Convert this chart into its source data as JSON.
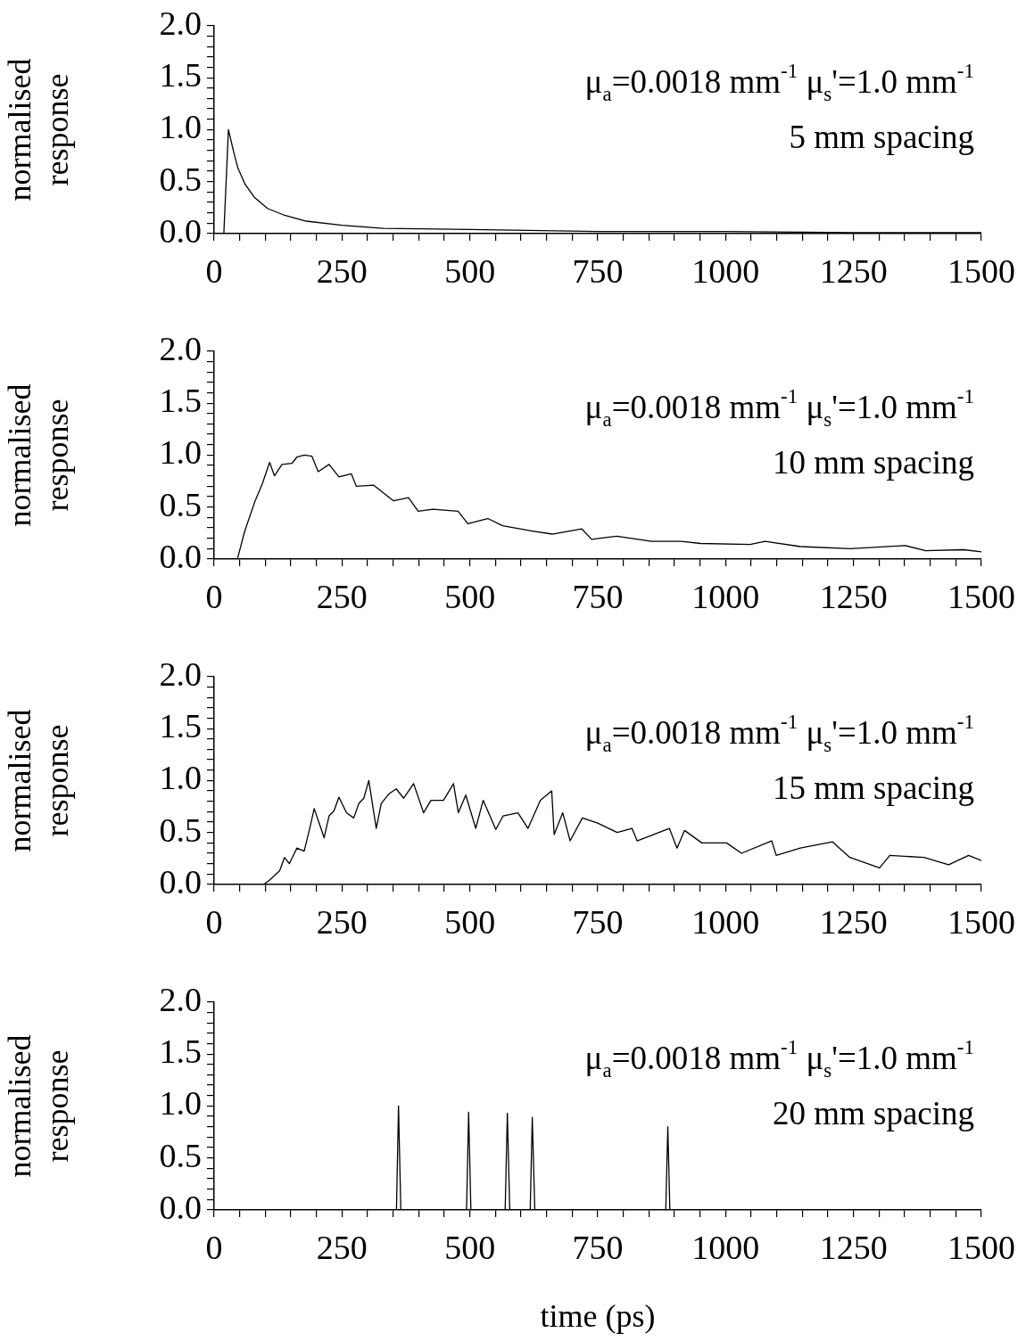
{
  "chart_data": [
    {
      "type": "line",
      "color": "#000000",
      "ylabel": "normalised response",
      "annotations": [
        "μ$_{a}$=0.0018 mm$^{-1}$ μ$_{s}$'=1.0 mm$^{-1}$",
        "5 mm spacing"
      ],
      "x": [
        0,
        19,
        28,
        38,
        46.5,
        60,
        78.5,
        105,
        136,
        180,
        250,
        331,
        500,
        750,
        1000,
        1250,
        1500
      ],
      "values": [
        0,
        0,
        1.0,
        0.79,
        0.63,
        0.48,
        0.35,
        0.24,
        0.18,
        0.12,
        0.08,
        0.05,
        0.04,
        0.02,
        0.02,
        0.01,
        0.01
      ],
      "xlim": [
        0,
        1500
      ],
      "ylim": [
        0,
        2
      ],
      "xticks": [
        0,
        {
          "value": 50,
          "label": null
        },
        {
          "value": 100,
          "label": null
        },
        {
          "value": 150,
          "label": null
        },
        {
          "value": 200,
          "label": null
        },
        250,
        {
          "value": 300,
          "label": null
        },
        {
          "value": 350,
          "label": null
        },
        {
          "value": 400,
          "label": null
        },
        {
          "value": 450,
          "label": null
        },
        500,
        {
          "value": 550,
          "label": null
        },
        {
          "value": 600,
          "label": null
        },
        {
          "value": 650,
          "label": null
        },
        {
          "value": 700,
          "label": null
        },
        750,
        {
          "value": 800,
          "label": null
        },
        {
          "value": 850,
          "label": null
        },
        {
          "value": 900,
          "label": null
        },
        {
          "value": 950,
          "label": null
        },
        1000,
        {
          "value": 1050,
          "label": null
        },
        {
          "value": 1100,
          "label": null
        },
        {
          "value": 1150,
          "label": null
        },
        {
          "value": 1200,
          "label": null
        },
        1250,
        {
          "value": 1300,
          "label": null
        },
        {
          "value": 1350,
          "label": null
        },
        {
          "value": 1400,
          "label": null
        },
        {
          "value": 1450,
          "label": null
        },
        1500
      ],
      "yticks": [
        {
          "value": 0,
          "label": "0.0"
        },
        {
          "value": 0.1,
          "label": null
        },
        {
          "value": 0.2,
          "label": null
        },
        {
          "value": 0.3,
          "label": null
        },
        {
          "value": 0.4,
          "label": null
        },
        {
          "value": 0.5,
          "label": "0.5"
        },
        {
          "value": 0.6,
          "label": null
        },
        {
          "value": 0.7,
          "label": null
        },
        {
          "value": 0.8,
          "label": null
        },
        {
          "value": 0.9,
          "label": null
        },
        {
          "value": 1,
          "label": "1.0"
        },
        {
          "value": 1.1,
          "label": null
        },
        {
          "value": 1.2,
          "label": null
        },
        {
          "value": 1.3,
          "label": null
        },
        {
          "value": 1.4,
          "label": null
        },
        {
          "value": 1.5,
          "label": "1.5"
        },
        {
          "value": 1.6,
          "label": null
        },
        {
          "value": 1.7,
          "label": null
        },
        {
          "value": 1.8,
          "label": null
        },
        {
          "value": 1.9,
          "label": null
        },
        {
          "value": 2,
          "label": "2.0"
        }
      ]
    },
    {
      "type": "line",
      "color": "#000000",
      "ylabel": "normalised response",
      "annotations": [
        "μ$_{a}$=0.0018 mm$^{-1}$ μ$_{s}$'=1.0 mm$^{-1}$",
        "10 mm spacing"
      ],
      "x": [
        0,
        45.5,
        60,
        79.5,
        94,
        108.5,
        118,
        132.7,
        152,
        161.8,
        176.4,
        191,
        203.5,
        224.8,
        244,
        268.4,
        278,
        312,
        350.8,
        380,
        399,
        428,
        477,
        496,
        535,
        564,
        622,
        661,
        719,
        738,
        787,
        855,
        913,
        951,
        1048,
        1077,
        1146,
        1244,
        1351,
        1391,
        1465,
        1500
      ],
      "values": [
        0,
        0,
        0.27,
        0.55,
        0.72,
        0.93,
        0.8,
        0.91,
        0.92,
        0.98,
        1.0,
        0.99,
        0.84,
        0.91,
        0.79,
        0.82,
        0.7,
        0.71,
        0.56,
        0.59,
        0.46,
        0.48,
        0.46,
        0.34,
        0.39,
        0.32,
        0.27,
        0.24,
        0.29,
        0.19,
        0.22,
        0.17,
        0.17,
        0.15,
        0.14,
        0.17,
        0.12,
        0.1,
        0.13,
        0.08,
        0.09,
        0.07
      ],
      "xlim": [
        0,
        1500
      ],
      "ylim": [
        0,
        2
      ],
      "xticks": [
        0,
        {
          "value": 50,
          "label": null
        },
        {
          "value": 100,
          "label": null
        },
        {
          "value": 150,
          "label": null
        },
        {
          "value": 200,
          "label": null
        },
        250,
        {
          "value": 300,
          "label": null
        },
        {
          "value": 350,
          "label": null
        },
        {
          "value": 400,
          "label": null
        },
        {
          "value": 450,
          "label": null
        },
        500,
        {
          "value": 550,
          "label": null
        },
        {
          "value": 600,
          "label": null
        },
        {
          "value": 650,
          "label": null
        },
        {
          "value": 700,
          "label": null
        },
        750,
        {
          "value": 800,
          "label": null
        },
        {
          "value": 850,
          "label": null
        },
        {
          "value": 900,
          "label": null
        },
        {
          "value": 950,
          "label": null
        },
        1000,
        {
          "value": 1050,
          "label": null
        },
        {
          "value": 1100,
          "label": null
        },
        {
          "value": 1150,
          "label": null
        },
        {
          "value": 1200,
          "label": null
        },
        1250,
        {
          "value": 1300,
          "label": null
        },
        {
          "value": 1350,
          "label": null
        },
        {
          "value": 1400,
          "label": null
        },
        {
          "value": 1450,
          "label": null
        },
        1500
      ],
      "yticks": [
        {
          "value": 0,
          "label": "0.0"
        },
        {
          "value": 0.1,
          "label": null
        },
        {
          "value": 0.2,
          "label": null
        },
        {
          "value": 0.3,
          "label": null
        },
        {
          "value": 0.4,
          "label": null
        },
        {
          "value": 0.5,
          "label": "0.5"
        },
        {
          "value": 0.6,
          "label": null
        },
        {
          "value": 0.7,
          "label": null
        },
        {
          "value": 0.8,
          "label": null
        },
        {
          "value": 0.9,
          "label": null
        },
        {
          "value": 1,
          "label": "1.0"
        },
        {
          "value": 1.1,
          "label": null
        },
        {
          "value": 1.2,
          "label": null
        },
        {
          "value": 1.3,
          "label": null
        },
        {
          "value": 1.4,
          "label": null
        },
        {
          "value": 1.5,
          "label": "1.5"
        },
        {
          "value": 1.6,
          "label": null
        },
        {
          "value": 1.7,
          "label": null
        },
        {
          "value": 1.8,
          "label": null
        },
        {
          "value": 1.9,
          "label": null
        },
        {
          "value": 2,
          "label": "2.0"
        }
      ]
    },
    {
      "type": "line",
      "color": "#000000",
      "ylabel": "normalised response",
      "annotations": [
        "μ$_{a}$=0.0018 mm$^{-1}$ μ$_{s}$'=1.0 mm$^{-1}$",
        "15 mm spacing"
      ],
      "x": [
        0,
        96.9,
        108,
        128,
        137.6,
        147,
        161.8,
        176,
        186,
        195.7,
        205.4,
        215,
        224.8,
        234.5,
        244,
        258.7,
        273,
        283,
        292.7,
        302.4,
        317,
        326.8,
        341.4,
        356,
        370.7,
        390,
        409.5,
        424,
        448.5,
        468,
        477.5,
        492,
        511.5,
        526,
        550.7,
        565,
        594,
        613.6,
        638,
        660,
        664.8,
        681.6,
        696,
        720,
        749.7,
        788,
        817,
        827,
        890,
        905,
        919.7,
        953.6,
        1002,
        1031,
        1090,
        1099,
        1146,
        1209,
        1243,
        1301,
        1321,
        1388,
        1436,
        1475,
        1500
      ],
      "values": [
        0,
        0,
        0.04,
        0.13,
        0.26,
        0.2,
        0.35,
        0.32,
        0.52,
        0.73,
        0.59,
        0.45,
        0.66,
        0.71,
        0.84,
        0.69,
        0.64,
        0.78,
        0.83,
        1.0,
        0.54,
        0.78,
        0.87,
        0.92,
        0.83,
        0.97,
        0.69,
        0.81,
        0.81,
        0.97,
        0.69,
        0.86,
        0.54,
        0.81,
        0.53,
        0.66,
        0.69,
        0.54,
        0.81,
        0.9,
        0.48,
        0.69,
        0.42,
        0.64,
        0.59,
        0.5,
        0.54,
        0.42,
        0.54,
        0.35,
        0.52,
        0.4,
        0.4,
        0.3,
        0.42,
        0.28,
        0.35,
        0.41,
        0.26,
        0.16,
        0.28,
        0.26,
        0.19,
        0.28,
        0.23
      ],
      "xlim": [
        0,
        1500
      ],
      "ylim": [
        0,
        2
      ],
      "xticks": [
        0,
        {
          "value": 50,
          "label": null
        },
        {
          "value": 100,
          "label": null
        },
        {
          "value": 150,
          "label": null
        },
        {
          "value": 200,
          "label": null
        },
        250,
        {
          "value": 300,
          "label": null
        },
        {
          "value": 350,
          "label": null
        },
        {
          "value": 400,
          "label": null
        },
        {
          "value": 450,
          "label": null
        },
        500,
        {
          "value": 550,
          "label": null
        },
        {
          "value": 600,
          "label": null
        },
        {
          "value": 650,
          "label": null
        },
        {
          "value": 700,
          "label": null
        },
        750,
        {
          "value": 800,
          "label": null
        },
        {
          "value": 850,
          "label": null
        },
        {
          "value": 900,
          "label": null
        },
        {
          "value": 950,
          "label": null
        },
        1000,
        {
          "value": 1050,
          "label": null
        },
        {
          "value": 1100,
          "label": null
        },
        {
          "value": 1150,
          "label": null
        },
        {
          "value": 1200,
          "label": null
        },
        1250,
        {
          "value": 1300,
          "label": null
        },
        {
          "value": 1350,
          "label": null
        },
        {
          "value": 1400,
          "label": null
        },
        {
          "value": 1450,
          "label": null
        },
        1500
      ],
      "yticks": [
        {
          "value": 0,
          "label": "0.0"
        },
        {
          "value": 0.1,
          "label": null
        },
        {
          "value": 0.2,
          "label": null
        },
        {
          "value": 0.3,
          "label": null
        },
        {
          "value": 0.4,
          "label": null
        },
        {
          "value": 0.5,
          "label": "0.5"
        },
        {
          "value": 0.6,
          "label": null
        },
        {
          "value": 0.7,
          "label": null
        },
        {
          "value": 0.8,
          "label": null
        },
        {
          "value": 0.9,
          "label": null
        },
        {
          "value": 1,
          "label": "1.0"
        },
        {
          "value": 1.1,
          "label": null
        },
        {
          "value": 1.2,
          "label": null
        },
        {
          "value": 1.3,
          "label": null
        },
        {
          "value": 1.4,
          "label": null
        },
        {
          "value": 1.5,
          "label": "1.5"
        },
        {
          "value": 1.6,
          "label": null
        },
        {
          "value": 1.7,
          "label": null
        },
        {
          "value": 1.8,
          "label": null
        },
        {
          "value": 1.9,
          "label": null
        },
        {
          "value": 2,
          "label": "2.0"
        }
      ]
    },
    {
      "type": "line",
      "color": "#000000",
      "ylabel": "normalised response",
      "xlabel": "time (ps)",
      "annotations": [
        "μ$_{a}$=0.0018 mm$^{-1}$ μ$_{s}$'=1.0 mm$^{-1}$",
        "20 mm spacing"
      ],
      "x": [
        0,
        356.5,
        360.5,
        365,
        493.5,
        497.6,
        502,
        569,
        573.3,
        578,
        618,
        622,
        627,
        883,
        887,
        891,
        1500
      ],
      "values": [
        0,
        0,
        1.0,
        0,
        0,
        0.94,
        0,
        0,
        0.93,
        0,
        0,
        0.89,
        0,
        0,
        0.8,
        0,
        0
      ],
      "xlim": [
        0,
        1500
      ],
      "ylim": [
        0,
        2
      ],
      "xticks": [
        0,
        {
          "value": 50,
          "label": null
        },
        {
          "value": 100,
          "label": null
        },
        {
          "value": 150,
          "label": null
        },
        {
          "value": 200,
          "label": null
        },
        250,
        {
          "value": 300,
          "label": null
        },
        {
          "value": 350,
          "label": null
        },
        {
          "value": 400,
          "label": null
        },
        {
          "value": 450,
          "label": null
        },
        500,
        {
          "value": 550,
          "label": null
        },
        {
          "value": 600,
          "label": null
        },
        {
          "value": 650,
          "label": null
        },
        {
          "value": 700,
          "label": null
        },
        750,
        {
          "value": 800,
          "label": null
        },
        {
          "value": 850,
          "label": null
        },
        {
          "value": 900,
          "label": null
        },
        {
          "value": 950,
          "label": null
        },
        1000,
        {
          "value": 1050,
          "label": null
        },
        {
          "value": 1100,
          "label": null
        },
        {
          "value": 1150,
          "label": null
        },
        {
          "value": 1200,
          "label": null
        },
        1250,
        {
          "value": 1300,
          "label": null
        },
        {
          "value": 1350,
          "label": null
        },
        {
          "value": 1400,
          "label": null
        },
        {
          "value": 1450,
          "label": null
        },
        1500
      ],
      "yticks": [
        {
          "value": 0,
          "label": "0.0"
        },
        {
          "value": 0.1,
          "label": null
        },
        {
          "value": 0.2,
          "label": null
        },
        {
          "value": 0.3,
          "label": null
        },
        {
          "value": 0.4,
          "label": null
        },
        {
          "value": 0.5,
          "label": "0.5"
        },
        {
          "value": 0.6,
          "label": null
        },
        {
          "value": 0.7,
          "label": null
        },
        {
          "value": 0.8,
          "label": null
        },
        {
          "value": 0.9,
          "label": null
        },
        {
          "value": 1,
          "label": "1.0"
        },
        {
          "value": 1.1,
          "label": null
        },
        {
          "value": 1.2,
          "label": null
        },
        {
          "value": 1.3,
          "label": null
        },
        {
          "value": 1.4,
          "label": null
        },
        {
          "value": 1.5,
          "label": "1.5"
        },
        {
          "value": 1.6,
          "label": null
        },
        {
          "value": 1.7,
          "label": null
        },
        {
          "value": 1.8,
          "label": null
        },
        {
          "value": 1.9,
          "label": null
        },
        {
          "value": 2,
          "label": "2.0"
        }
      ]
    }
  ]
}
